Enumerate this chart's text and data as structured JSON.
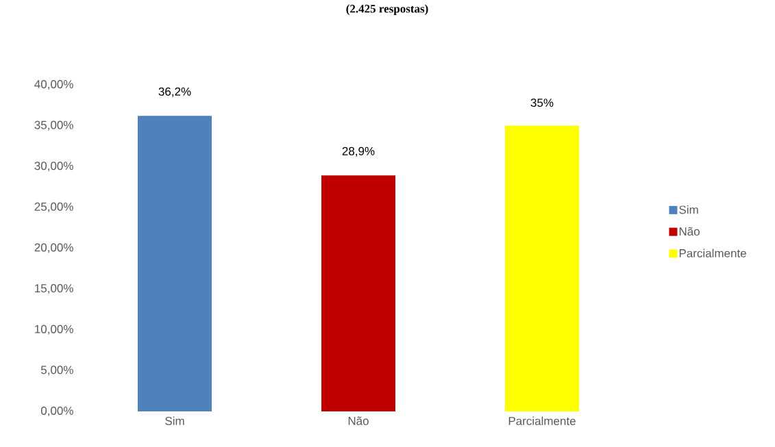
{
  "chart_data": {
    "type": "bar",
    "subtitle": "(2.425 respostas)",
    "categories": [
      "Sim",
      "Não",
      "Parcialmente"
    ],
    "series": [
      {
        "name": "Sim",
        "color": "#4f81bd",
        "values": [
          36.2,
          null,
          null
        ],
        "value_labels": [
          "36,2%",
          null,
          null
        ]
      },
      {
        "name": "Não",
        "color": "#c00000",
        "values": [
          null,
          28.9,
          null
        ],
        "value_labels": [
          null,
          "28,9%",
          null
        ]
      },
      {
        "name": "Parcialmente",
        "color": "#ffff00",
        "values": [
          null,
          null,
          35
        ],
        "value_labels": [
          null,
          null,
          "35%"
        ]
      }
    ],
    "ylim": [
      0,
      40
    ],
    "yticks": [
      {
        "value": 0,
        "label": "0,00%"
      },
      {
        "value": 5,
        "label": "5,00%"
      },
      {
        "value": 10,
        "label": "10,00%"
      },
      {
        "value": 15,
        "label": "15,00%"
      },
      {
        "value": 20,
        "label": "20,00%"
      },
      {
        "value": 25,
        "label": "25,00%"
      },
      {
        "value": 30,
        "label": "30,00%"
      },
      {
        "value": 35,
        "label": "35,00%"
      },
      {
        "value": 40,
        "label": "40,00%"
      }
    ],
    "legend": "right"
  }
}
